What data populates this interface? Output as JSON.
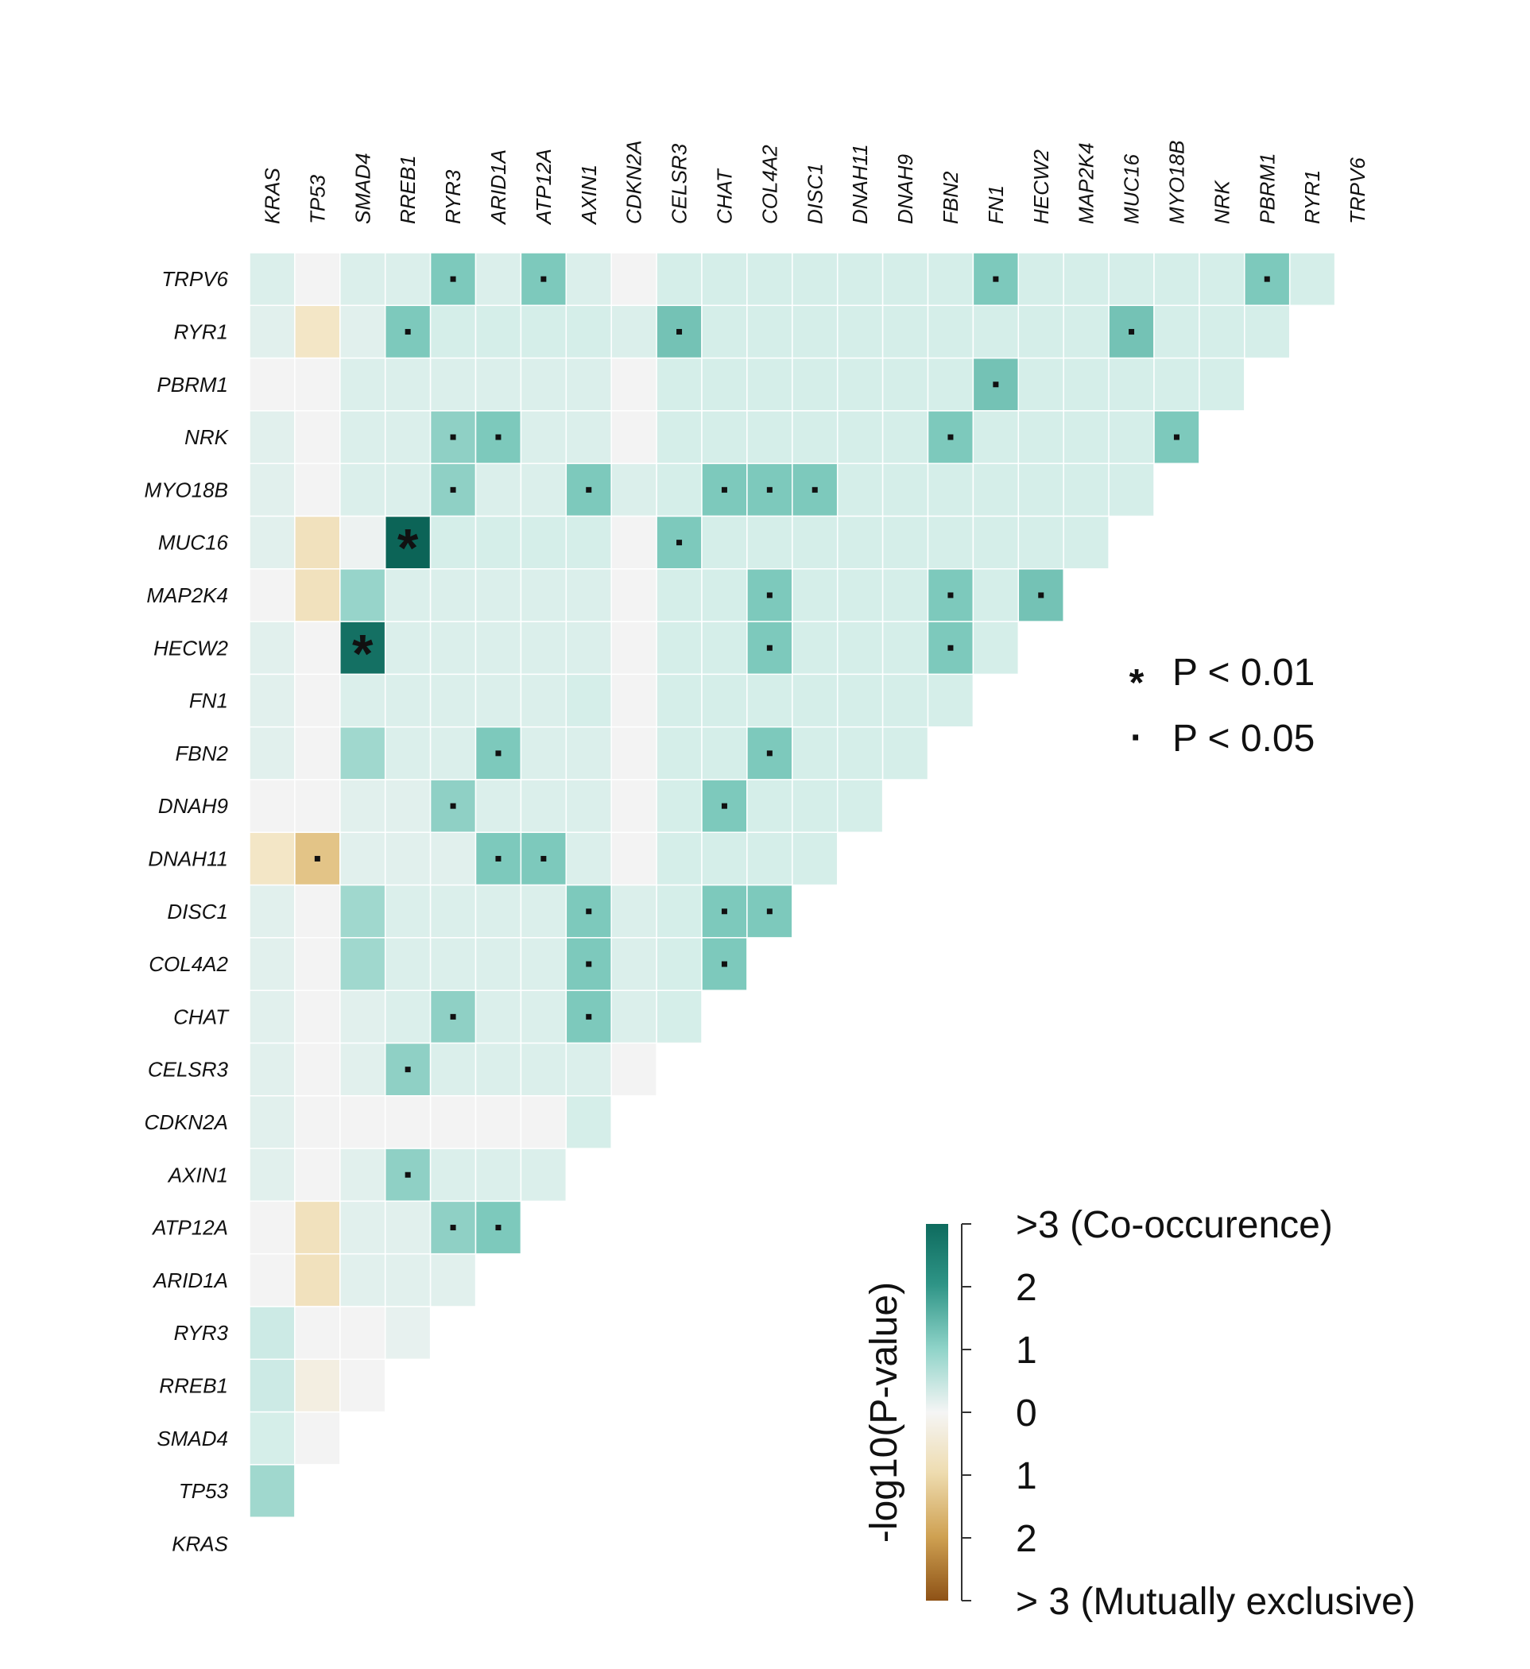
{
  "chart_data": {
    "type": "heatmap",
    "title": "",
    "genes": [
      "KRAS",
      "TP53",
      "SMAD4",
      "RREB1",
      "RYR3",
      "ARID1A",
      "ATP12A",
      "AXIN1",
      "CDKN2A",
      "CELSR3",
      "CHAT",
      "COL4A2",
      "DISC1",
      "DNAH11",
      "DNAH9",
      "FBN2",
      "FN1",
      "HECW2",
      "MAP2K4",
      "MUC16",
      "MYO18B",
      "NRK",
      "PBRM1",
      "RYR1",
      "TRPV6"
    ],
    "columns": [
      "KRAS",
      "TP53",
      "SMAD4",
      "RREB1",
      "RYR3",
      "ARID1A",
      "ATP12A",
      "AXIN1",
      "CDKN2A",
      "CELSR3",
      "CHAT",
      "COL4A2",
      "DISC1",
      "DNAH11",
      "DNAH9",
      "FBN2",
      "FN1",
      "HECW2",
      "MAP2K4",
      "MUC16",
      "MYO18B",
      "NRK",
      "PBRM1",
      "RYR1",
      "TRPV6"
    ],
    "rows": [
      "TRPV6",
      "RYR1",
      "PBRM1",
      "NRK",
      "MYO18B",
      "MUC16",
      "MAP2K4",
      "HECW2",
      "FN1",
      "FBN2",
      "DNAH9",
      "DNAH11",
      "DISC1",
      "COL4A2",
      "CHAT",
      "CELSR3",
      "CDKN2A",
      "AXIN1",
      "ATP12A",
      "ARID1A",
      "RYR3",
      "RREB1",
      "SMAD4",
      "TP53",
      "KRAS"
    ],
    "value_note": "signed -log10(P-value); positive = co-occurrence, negative = mutual exclusivity",
    "values": [
      [
        0.4,
        0.0,
        0.4,
        0.4,
        1.5,
        0.4,
        1.5,
        0.4,
        0.0,
        0.5,
        0.5,
        0.5,
        0.5,
        0.5,
        0.5,
        0.5,
        1.5,
        0.5,
        0.5,
        0.5,
        0.5,
        0.5,
        1.5,
        0.5
      ],
      [
        0.3,
        -0.5,
        0.3,
        1.5,
        0.5,
        0.5,
        0.5,
        0.5,
        0.4,
        1.6,
        0.5,
        0.5,
        0.5,
        0.5,
        0.5,
        0.5,
        0.5,
        0.5,
        0.5,
        1.6,
        0.5,
        0.5,
        0.5
      ],
      [
        0.0,
        0.0,
        0.4,
        0.4,
        0.4,
        0.4,
        0.4,
        0.4,
        0.0,
        0.5,
        0.5,
        0.5,
        0.5,
        0.5,
        0.5,
        0.5,
        1.6,
        0.5,
        0.5,
        0.5,
        0.5,
        0.5
      ],
      [
        0.3,
        0.0,
        0.4,
        0.4,
        1.3,
        1.5,
        0.4,
        0.4,
        0.0,
        0.5,
        0.5,
        0.5,
        0.5,
        0.5,
        0.5,
        1.5,
        0.5,
        0.5,
        0.5,
        0.5,
        1.5
      ],
      [
        0.3,
        0.0,
        0.4,
        0.4,
        1.3,
        0.4,
        0.4,
        1.5,
        0.4,
        0.5,
        1.5,
        1.5,
        1.5,
        0.5,
        0.5,
        0.5,
        0.5,
        0.5,
        0.5,
        0.5
      ],
      [
        0.3,
        -0.6,
        0.1,
        3.2,
        0.5,
        0.5,
        0.5,
        0.5,
        0.0,
        1.5,
        0.5,
        0.5,
        0.5,
        0.5,
        0.5,
        0.5,
        0.5,
        0.5,
        0.5
      ],
      [
        0.0,
        -0.6,
        1.2,
        0.4,
        0.4,
        0.4,
        0.4,
        0.4,
        0.0,
        0.5,
        0.5,
        1.5,
        0.5,
        0.5,
        0.5,
        1.5,
        0.5,
        1.6
      ],
      [
        0.3,
        0.0,
        2.8,
        0.4,
        0.4,
        0.4,
        0.4,
        0.4,
        0.0,
        0.5,
        0.5,
        1.5,
        0.5,
        0.5,
        0.5,
        1.5,
        0.5
      ],
      [
        0.3,
        0.0,
        0.4,
        0.4,
        0.4,
        0.4,
        0.4,
        0.5,
        0.0,
        0.5,
        0.5,
        0.5,
        0.5,
        0.5,
        0.5,
        0.5
      ],
      [
        0.3,
        0.0,
        1.1,
        0.4,
        0.4,
        1.5,
        0.4,
        0.4,
        0.0,
        0.5,
        0.5,
        1.5,
        0.5,
        0.5,
        0.5
      ],
      [
        0.0,
        0.0,
        0.3,
        0.3,
        1.3,
        0.4,
        0.4,
        0.4,
        0.0,
        0.5,
        1.5,
        0.5,
        0.5,
        0.5
      ],
      [
        -0.5,
        -1.2,
        0.3,
        0.3,
        0.3,
        1.5,
        1.5,
        0.4,
        0.0,
        0.5,
        0.5,
        0.5,
        0.5
      ],
      [
        0.3,
        0.0,
        1.1,
        0.4,
        0.4,
        0.4,
        0.4,
        1.5,
        0.4,
        0.5,
        1.5,
        1.5
      ],
      [
        0.3,
        0.0,
        1.1,
        0.4,
        0.4,
        0.4,
        0.4,
        1.5,
        0.4,
        0.5,
        1.5
      ],
      [
        0.3,
        0.0,
        0.3,
        0.4,
        1.3,
        0.4,
        0.4,
        1.5,
        0.4,
        0.5
      ],
      [
        0.3,
        0.0,
        0.3,
        1.3,
        0.4,
        0.4,
        0.4,
        0.4,
        0.0
      ],
      [
        0.3,
        0.0,
        0.0,
        0.0,
        0.0,
        0.0,
        0.0,
        0.5
      ],
      [
        0.3,
        0.0,
        0.3,
        1.3,
        0.4,
        0.4,
        0.4
      ],
      [
        0.0,
        -0.6,
        0.3,
        0.3,
        1.3,
        1.5
      ],
      [
        0.0,
        -0.6,
        0.3,
        0.3,
        0.3
      ],
      [
        0.6,
        0.0,
        0.0,
        0.2
      ],
      [
        0.6,
        -0.2,
        0.0
      ],
      [
        0.5,
        0.0
      ],
      [
        1.1
      ],
      []
    ],
    "significance": [
      {
        "row": "TRPV6",
        "col": "RYR3",
        "mark": "·"
      },
      {
        "row": "TRPV6",
        "col": "ATP12A",
        "mark": "·"
      },
      {
        "row": "TRPV6",
        "col": "FN1",
        "mark": "·"
      },
      {
        "row": "TRPV6",
        "col": "PBRM1",
        "mark": "·"
      },
      {
        "row": "RYR1",
        "col": "RREB1",
        "mark": "·"
      },
      {
        "row": "RYR1",
        "col": "CELSR3",
        "mark": "·"
      },
      {
        "row": "RYR1",
        "col": "MUC16",
        "mark": "·"
      },
      {
        "row": "PBRM1",
        "col": "FN1",
        "mark": "·"
      },
      {
        "row": "NRK",
        "col": "RYR3",
        "mark": "·"
      },
      {
        "row": "NRK",
        "col": "ARID1A",
        "mark": "·"
      },
      {
        "row": "NRK",
        "col": "FBN2",
        "mark": "·"
      },
      {
        "row": "NRK",
        "col": "MYO18B",
        "mark": "·"
      },
      {
        "row": "MYO18B",
        "col": "RYR3",
        "mark": "·"
      },
      {
        "row": "MYO18B",
        "col": "AXIN1",
        "mark": "·"
      },
      {
        "row": "MYO18B",
        "col": "CHAT",
        "mark": "·"
      },
      {
        "row": "MYO18B",
        "col": "COL4A2",
        "mark": "·"
      },
      {
        "row": "MYO18B",
        "col": "DISC1",
        "mark": "·"
      },
      {
        "row": "MUC16",
        "col": "RREB1",
        "mark": "*"
      },
      {
        "row": "MUC16",
        "col": "CELSR3",
        "mark": "·"
      },
      {
        "row": "MAP2K4",
        "col": "COL4A2",
        "mark": "·"
      },
      {
        "row": "MAP2K4",
        "col": "FBN2",
        "mark": "·"
      },
      {
        "row": "MAP2K4",
        "col": "HECW2",
        "mark": "·"
      },
      {
        "row": "HECW2",
        "col": "SMAD4",
        "mark": "*"
      },
      {
        "row": "HECW2",
        "col": "COL4A2",
        "mark": "·"
      },
      {
        "row": "HECW2",
        "col": "FBN2",
        "mark": "·"
      },
      {
        "row": "FBN2",
        "col": "ARID1A",
        "mark": "·"
      },
      {
        "row": "FBN2",
        "col": "COL4A2",
        "mark": "·"
      },
      {
        "row": "DNAH9",
        "col": "RYR3",
        "mark": "·"
      },
      {
        "row": "DNAH9",
        "col": "CHAT",
        "mark": "·"
      },
      {
        "row": "DNAH11",
        "col": "TP53",
        "mark": "·"
      },
      {
        "row": "DNAH11",
        "col": "ARID1A",
        "mark": "·"
      },
      {
        "row": "DNAH11",
        "col": "ATP12A",
        "mark": "·"
      },
      {
        "row": "DISC1",
        "col": "AXIN1",
        "mark": "·"
      },
      {
        "row": "DISC1",
        "col": "CHAT",
        "mark": "·"
      },
      {
        "row": "DISC1",
        "col": "COL4A2",
        "mark": "·"
      },
      {
        "row": "COL4A2",
        "col": "AXIN1",
        "mark": "·"
      },
      {
        "row": "COL4A2",
        "col": "CHAT",
        "mark": "·"
      },
      {
        "row": "CHAT",
        "col": "RYR3",
        "mark": "·"
      },
      {
        "row": "CHAT",
        "col": "AXIN1",
        "mark": "·"
      },
      {
        "row": "CELSR3",
        "col": "RREB1",
        "mark": "·"
      },
      {
        "row": "AXIN1",
        "col": "RREB1",
        "mark": "·"
      },
      {
        "row": "ATP12A",
        "col": "RYR3",
        "mark": "·"
      },
      {
        "row": "ATP12A",
        "col": "ARID1A",
        "mark": "·"
      }
    ],
    "legend": {
      "entries": [
        {
          "symbol": "*",
          "label": "P < 0.01"
        },
        {
          "symbol": "·",
          "label": "P < 0.05"
        }
      ],
      "placement": "right"
    },
    "colorbar": {
      "title": "-log10(P-value)",
      "range": [
        -3,
        3
      ],
      "ticks": [
        {
          "value": 3,
          "label": ">3 (Co-occurence)"
        },
        {
          "value": 2,
          "label": "2"
        },
        {
          "value": 1,
          "label": "1"
        },
        {
          "value": 0,
          "label": "0"
        },
        {
          "value": -1,
          "label": "1"
        },
        {
          "value": -2,
          "label": "2"
        },
        {
          "value": -3,
          "label": "> 3 (Mutually exclusive)"
        }
      ],
      "colors": {
        "co_occurrence_high": "#0e6b5e",
        "co_occurrence_mid": "#56b3a5",
        "co_occurrence_low": "#d3eeea",
        "neutral": "#f3f3f3",
        "exclusive_low": "#f3e6c6",
        "exclusive_mid": "#d8b36a",
        "exclusive_high": "#9b5b1c"
      },
      "placement": "bottom-right"
    },
    "grid": false
  }
}
